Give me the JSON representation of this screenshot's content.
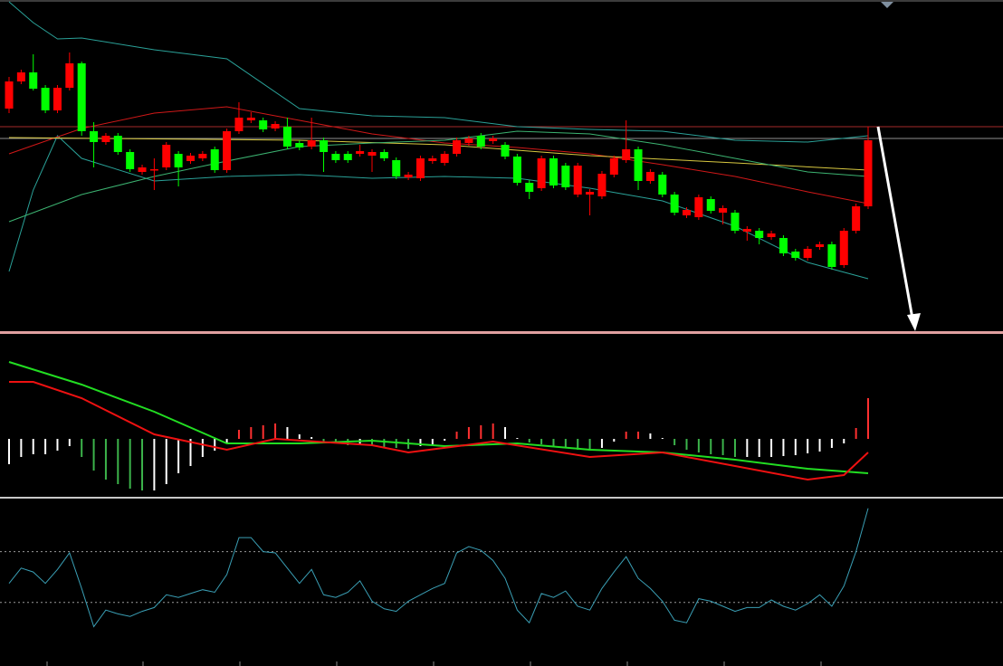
{
  "chart_data": [
    {
      "type": "candlestick",
      "open": [
        246,
        276,
        286,
        269,
        244,
        269,
        296,
        221,
        209,
        216,
        198,
        176,
        178,
        181,
        196,
        188,
        191,
        201,
        178,
        221,
        233,
        233,
        224,
        226,
        208,
        204,
        211,
        196,
        196,
        196,
        194,
        198,
        189,
        170,
        169,
        188,
        186,
        196,
        208,
        216,
        210,
        206,
        193,
        164,
        158,
        191,
        183,
        151,
        151,
        149,
        173,
        189,
        201,
        166,
        173,
        151,
        128,
        126,
        146,
        131,
        131,
        110,
        111,
        104,
        103,
        88,
        81,
        93,
        96,
        73,
        111,
        138
      ],
      "high": [
        281,
        289,
        306,
        272,
        272,
        308,
        298,
        231,
        219,
        219,
        201,
        184,
        191,
        209,
        199,
        197,
        199,
        204,
        224,
        253,
        242,
        236,
        232,
        236,
        211,
        236,
        214,
        199,
        199,
        206,
        201,
        201,
        192,
        176,
        194,
        194,
        199,
        214,
        216,
        219,
        216,
        209,
        196,
        167,
        194,
        194,
        186,
        186,
        157,
        177,
        194,
        233,
        204,
        179,
        176,
        154,
        137,
        151,
        149,
        139,
        134,
        116,
        114,
        111,
        106,
        91,
        94,
        99,
        99,
        114,
        141,
        226
      ],
      "low": [
        241,
        273,
        266,
        241,
        241,
        266,
        216,
        181,
        206,
        195,
        176,
        173,
        156,
        178,
        160,
        185,
        188,
        175,
        175,
        218,
        230,
        220,
        221,
        201,
        200,
        201,
        176,
        186,
        186,
        193,
        176,
        188,
        168,
        167,
        166,
        185,
        183,
        193,
        205,
        201,
        207,
        190,
        161,
        146,
        155,
        158,
        156,
        148,
        128,
        146,
        170,
        186,
        156,
        163,
        148,
        128,
        125,
        123,
        130,
        118,
        108,
        100,
        96,
        101,
        83,
        78,
        78,
        90,
        68,
        70,
        108,
        135
      ],
      "close": [
        276,
        286,
        268,
        244,
        269,
        296,
        221,
        209,
        216,
        198,
        179,
        181,
        179,
        206,
        181,
        194,
        196,
        178,
        221,
        236,
        236,
        223,
        229,
        204,
        203,
        211,
        198,
        189,
        189,
        199,
        198,
        191,
        171,
        173,
        191,
        191,
        196,
        211,
        213,
        204,
        213,
        193,
        164,
        154,
        191,
        161,
        159,
        183,
        154,
        174,
        191,
        201,
        166,
        176,
        151,
        131,
        134,
        148,
        133,
        136,
        111,
        113,
        103,
        108,
        86,
        81,
        91,
        96,
        71,
        111,
        138,
        211
      ],
      "up_color": "#ff0000",
      "down_color": "#00ff00",
      "ylim": [
        0,
        366
      ],
      "overlays": [
        {
          "color": "#2aa198",
          "x": [
            0,
            2,
            4,
            6,
            12,
            18,
            24,
            30,
            36,
            42,
            48,
            54,
            60,
            66,
            71
          ],
          "values": [
            364,
            341,
            323,
            324,
            311,
            301,
            246,
            238,
            236,
            226,
            223,
            221,
            211,
            209,
            216
          ]
        },
        {
          "color": "#2aa198",
          "x": [
            0,
            2,
            4,
            6,
            12,
            18,
            24,
            30,
            36,
            42,
            48,
            54,
            60,
            66,
            71
          ],
          "values": [
            66,
            156,
            216,
            191,
            166,
            171,
            173,
            169,
            171,
            169,
            158,
            144,
            116,
            76,
            58
          ]
        },
        {
          "color": "#d01818",
          "x": [
            0,
            6,
            12,
            18,
            24,
            30,
            36,
            42,
            48,
            54,
            60,
            66,
            71
          ],
          "values": [
            196,
            224,
            241,
            248,
            233,
            218,
            208,
            203,
            196,
            184,
            171,
            154,
            141
          ]
        },
        {
          "color": "#d8c840",
          "x": [
            0,
            24,
            36,
            48,
            60,
            71
          ],
          "values": [
            214,
            211,
            206,
            194,
            186,
            178
          ]
        },
        {
          "color": "#3cb371",
          "x": [
            0,
            6,
            12,
            18,
            24,
            30,
            36,
            42,
            48,
            54,
            60,
            66,
            71
          ],
          "values": [
            121,
            151,
            171,
            188,
            204,
            208,
            211,
            221,
            218,
            206,
            191,
            176,
            171
          ]
        }
      ],
      "hlines": [
        {
          "value": 226,
          "color": "#a52a2a"
        },
        {
          "value": 213,
          "color": "#909090"
        }
      ]
    },
    {
      "type": "macd",
      "histogram": [
        -28,
        -20,
        -17,
        -17,
        -13,
        -8,
        -20,
        -35,
        -45,
        -50,
        -55,
        -57,
        -57,
        -50,
        -38,
        -30,
        -20,
        -13,
        -5,
        10,
        13,
        15,
        17,
        13,
        5,
        2,
        -3,
        -5,
        -7,
        -6,
        -8,
        -9,
        -10,
        -11,
        -8,
        -6,
        -2,
        8,
        13,
        15,
        17,
        13,
        1,
        -4,
        -6,
        -8,
        -10,
        -12,
        -13,
        -10,
        -3,
        8,
        8,
        6,
        1,
        -7,
        -12,
        -15,
        -17,
        -18,
        -20,
        -20,
        -20,
        -20,
        -19,
        -18,
        -16,
        -14,
        -10,
        -5,
        12,
        45
      ],
      "hist_colors": {
        "pos_up": "#ff3030",
        "pos_down": "#ffffff",
        "neg_down": "#3cb44b",
        "neg_up": "#ffffff"
      },
      "ylim": [
        -63,
        115
      ],
      "lines": [
        {
          "color": "#22dd22",
          "x": [
            0,
            6,
            12,
            18,
            24,
            30,
            36,
            42,
            48,
            54,
            60,
            66,
            71
          ],
          "values": [
            85,
            60,
            30,
            -5,
            -5,
            -2,
            -8,
            -5,
            -12,
            -15,
            -23,
            -33,
            -38
          ]
        },
        {
          "color": "#ee1111",
          "x": [
            0,
            2,
            6,
            12,
            18,
            22,
            30,
            33,
            40,
            48,
            54,
            60,
            66,
            69,
            71
          ],
          "values": [
            63,
            63,
            45,
            5,
            -12,
            0,
            -7,
            -15,
            -3,
            -20,
            -15,
            -30,
            -45,
            -40,
            -15
          ]
        }
      ]
    },
    {
      "type": "line",
      "values": [
        45,
        57,
        54,
        45,
        56,
        69,
        41,
        11,
        24,
        21,
        19,
        23,
        26,
        36,
        34,
        37,
        40,
        38,
        52,
        81,
        81,
        70,
        69,
        57,
        45,
        56,
        36,
        34,
        38,
        47,
        31,
        25,
        23,
        31,
        36,
        41,
        45,
        69,
        74,
        71,
        63,
        49,
        24,
        14,
        37,
        34,
        39,
        27,
        24,
        41,
        54,
        66,
        49,
        41,
        31,
        16,
        14,
        33,
        31,
        27,
        23,
        26,
        26,
        32,
        27,
        24,
        29,
        36,
        27,
        43,
        70,
        104
      ],
      "color": "#3a9fb5",
      "ylim": [
        -20,
        111
      ],
      "levels": [
        30,
        70
      ]
    }
  ]
}
